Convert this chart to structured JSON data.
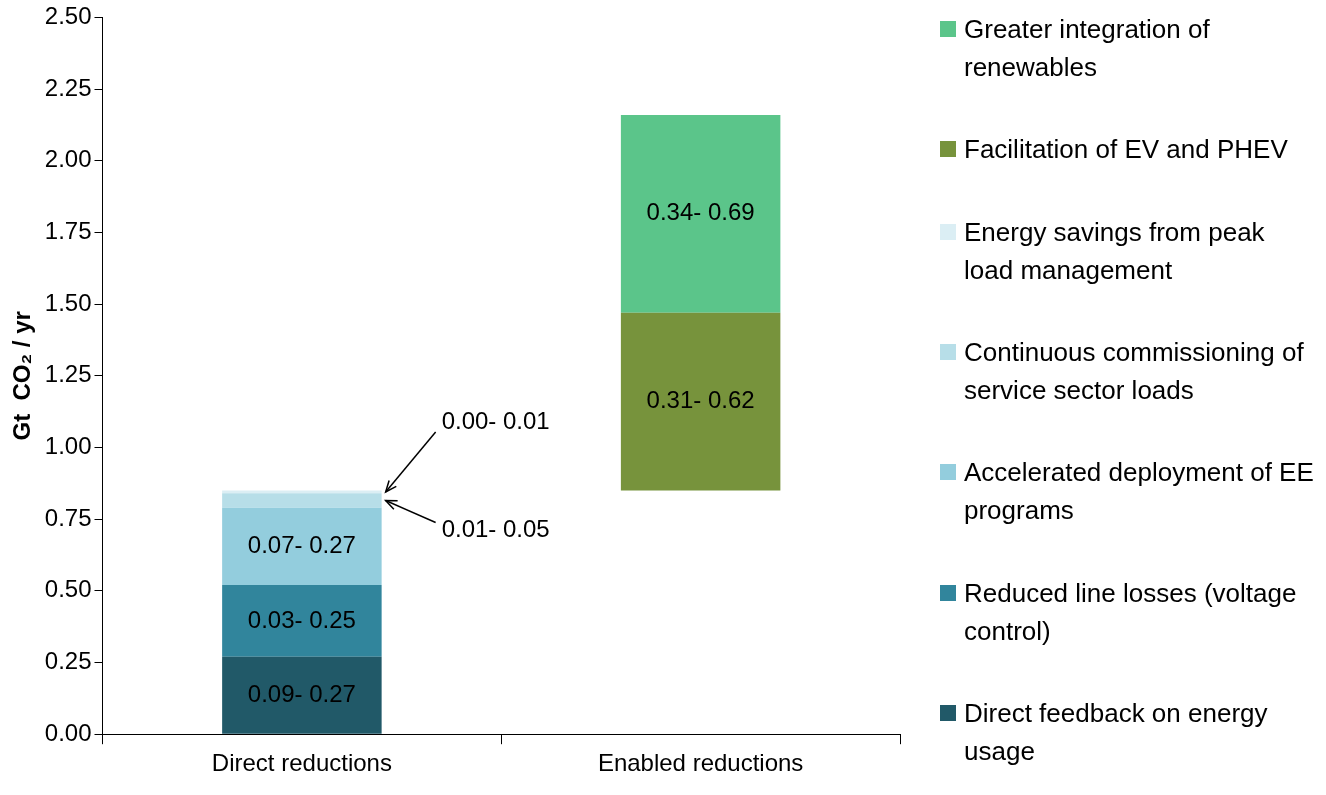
{
  "chart_data": {
    "type": "bar",
    "stacked": true,
    "ylabel": "Gt  CO₂ / yr",
    "categories": [
      "Direct reductions",
      "Enabled reductions"
    ],
    "ylim": [
      0,
      2.5
    ],
    "yticks": [
      {
        "value": 0,
        "label": "0.00"
      },
      {
        "value": 0.25,
        "label": "0.25"
      },
      {
        "value": 0.5,
        "label": "0.50"
      },
      {
        "value": 0.75,
        "label": "0.75"
      },
      {
        "value": 1,
        "label": "1.00"
      },
      {
        "value": 1.25,
        "label": "1.25"
      },
      {
        "value": 1.5,
        "label": "1.50"
      },
      {
        "value": 1.75,
        "label": "1.75"
      },
      {
        "value": 2,
        "label": "2.00"
      },
      {
        "value": 2.25,
        "label": "2.25"
      },
      {
        "value": 2.5,
        "label": "2.50"
      }
    ],
    "grid": false,
    "legend": "right",
    "series": [
      {
        "name": "Direct feedback on energy usage",
        "color": "#215968",
        "values": [
          0.27,
          null
        ],
        "value_labels": [
          "0.09- 0.27",
          null
        ]
      },
      {
        "name": "Reduced line losses (voltage control)",
        "color": "#31859c",
        "values": [
          0.25,
          null
        ],
        "value_labels": [
          "0.03- 0.25",
          null
        ]
      },
      {
        "name": "Accelerated deployment of EE programs",
        "color": "#93cddd",
        "values": [
          0.27,
          null
        ],
        "value_labels": [
          "0.07- 0.27",
          null
        ]
      },
      {
        "name": "Continuous commissioning of service sector loads",
        "color": "#b7dee8",
        "values": [
          0.05,
          null
        ],
        "value_labels": [
          "0.01- 0.05",
          null
        ]
      },
      {
        "name": "Energy savings from peak load management",
        "color": "#dbeef4",
        "values": [
          0.01,
          null
        ],
        "value_labels": [
          "0.00- 0.01",
          null
        ]
      },
      {
        "name": "Facilitation of EV and PHEV",
        "color": "#77933c",
        "base": [
          null,
          0.85
        ],
        "values": [
          null,
          0.62
        ],
        "value_labels": [
          null,
          "0.31- 0.62"
        ]
      },
      {
        "name": "Greater integration of renewables",
        "color": "#5bc58a",
        "values": [
          null,
          0.69
        ],
        "value_labels": [
          null,
          "0.34- 0.69"
        ]
      }
    ]
  }
}
